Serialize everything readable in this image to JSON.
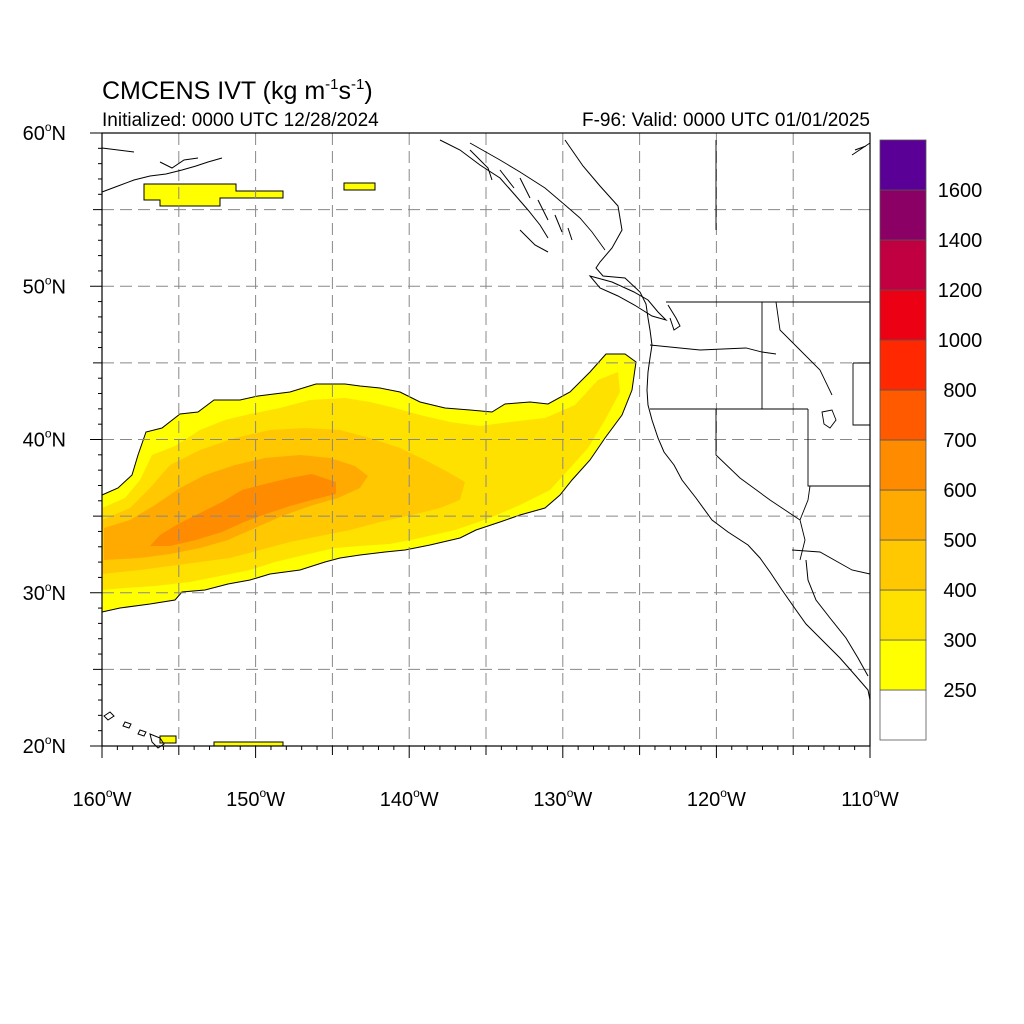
{
  "title": {
    "main": "CMCENS IVT (kg m",
    "exp1": "-1",
    "mid": "s",
    "exp2": "-1",
    "end": ")"
  },
  "subtitle_left": "Initialized: 0000 UTC 12/28/2024",
  "subtitle_right": "F-96: Valid: 0000 UTC 01/01/2025",
  "map": {
    "projection": "cylindrical equidistant",
    "lon_range": [
      -160,
      -110
    ],
    "lat_range": [
      20,
      60
    ],
    "grid": "dashed gray every 5 degrees",
    "lon_ticks": [
      {
        "value": -160,
        "label": "160",
        "hemi": "W"
      },
      {
        "value": -150,
        "label": "150",
        "hemi": "W"
      },
      {
        "value": -140,
        "label": "140",
        "hemi": "W"
      },
      {
        "value": -130,
        "label": "130",
        "hemi": "W"
      },
      {
        "value": -120,
        "label": "120",
        "hemi": "W"
      },
      {
        "value": -110,
        "label": "110",
        "hemi": "W"
      }
    ],
    "lat_ticks": [
      {
        "value": 60,
        "label": "60",
        "hemi": "N"
      },
      {
        "value": 50,
        "label": "50",
        "hemi": "N"
      },
      {
        "value": 40,
        "label": "40",
        "hemi": "N"
      },
      {
        "value": 30,
        "label": "30",
        "hemi": "N"
      },
      {
        "value": 20,
        "label": "20",
        "hemi": "N"
      }
    ]
  },
  "colorbar": {
    "levels": [
      "250",
      "300",
      "400",
      "500",
      "600",
      "700",
      "800",
      "1000",
      "1200",
      "1400",
      "1600"
    ],
    "colors": [
      "#ffffff",
      "#ffff00",
      "#ffe100",
      "#ffc800",
      "#ffaa00",
      "#ff8c00",
      "#ff5a00",
      "#ff2800",
      "#eb0014",
      "#c00040",
      "#8b0064",
      "#5a0096"
    ]
  },
  "chart_data": {
    "type": "heatmap",
    "variable": "IVT",
    "units": "kg m-1 s-1",
    "features": [
      {
        "level": "250-300",
        "region": "atmospheric river envelope",
        "lon": [
          -160,
          -125.2
        ],
        "lat": [
          29,
          45.6
        ]
      },
      {
        "level": "300-400",
        "region": "river interior",
        "lon": [
          -160,
          -126
        ],
        "lat": [
          30,
          44.5
        ]
      },
      {
        "level": "400-500",
        "region": "river core",
        "lon": [
          -160,
          -135
        ],
        "lat": [
          30.5,
          40
        ]
      },
      {
        "level": "500-600",
        "region": "inner core",
        "lon": [
          -160,
          -141
        ],
        "lat": [
          31,
          38.5
        ]
      },
      {
        "level": "600-700",
        "region": "maximum",
        "lon": [
          -156,
          -144.5
        ],
        "lat": [
          33.5,
          37.5
        ]
      },
      {
        "level": "250-300",
        "region": "Gulf of Alaska patches",
        "lon": [
          -157.5,
          -141.5
        ],
        "lat": [
          55.3,
          56.7
        ]
      },
      {
        "level": "250-300",
        "region": "near Hawaii",
        "lon": [
          -157.2,
          -148.2
        ],
        "lat": [
          20.2,
          20.8
        ]
      }
    ]
  }
}
